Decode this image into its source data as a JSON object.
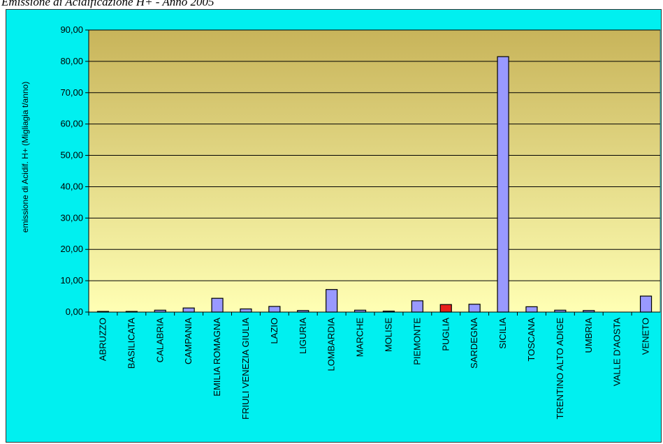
{
  "caption": "Emissione di Acidificazione H+ - Anno 2005",
  "colors": {
    "frame_background": "#00f0f0",
    "plot_gradient_top": "#c8b45a",
    "plot_gradient_bottom": "#ffffb4",
    "bar_default": "#9999ff",
    "bar_highlight": "#e8201c",
    "bar_outline": "#000000"
  },
  "chart_data": {
    "type": "bar",
    "title": "",
    "xlabel": "",
    "ylabel": "emissione di Acidif. H+ (Migliagia t/anno)",
    "ylim": [
      0,
      90
    ],
    "yticks": [
      "0,00",
      "10,00",
      "20,00",
      "30,00",
      "40,00",
      "50,00",
      "60,00",
      "70,00",
      "80,00",
      "90,00"
    ],
    "grid": true,
    "highlighted_category": "PUGLIA",
    "categories": [
      "ABRUZZO",
      "BASILICATA",
      "CALABRIA",
      "CAMPANIA",
      "EMILIA ROMAGNA",
      "FRIULI VENEZIA GIULIA",
      "LAZIO",
      "LIGURIA",
      "LOMBARDIA",
      "MARCHE",
      "MOLISE",
      "PIEMONTE",
      "PUGLIA",
      "SARDEGNA",
      "SICILIA",
      "TOSCANA",
      "TRENTINO ALTO ADIGE",
      "UMBRIA",
      "VALLE D'AOSTA",
      "VENETO"
    ],
    "values": [
      0.2,
      0.2,
      0.6,
      1.3,
      4.4,
      1.0,
      1.8,
      0.5,
      7.2,
      0.6,
      0.3,
      3.6,
      2.4,
      2.5,
      81.5,
      1.7,
      0.6,
      0.5,
      0.0,
      5.1
    ]
  }
}
